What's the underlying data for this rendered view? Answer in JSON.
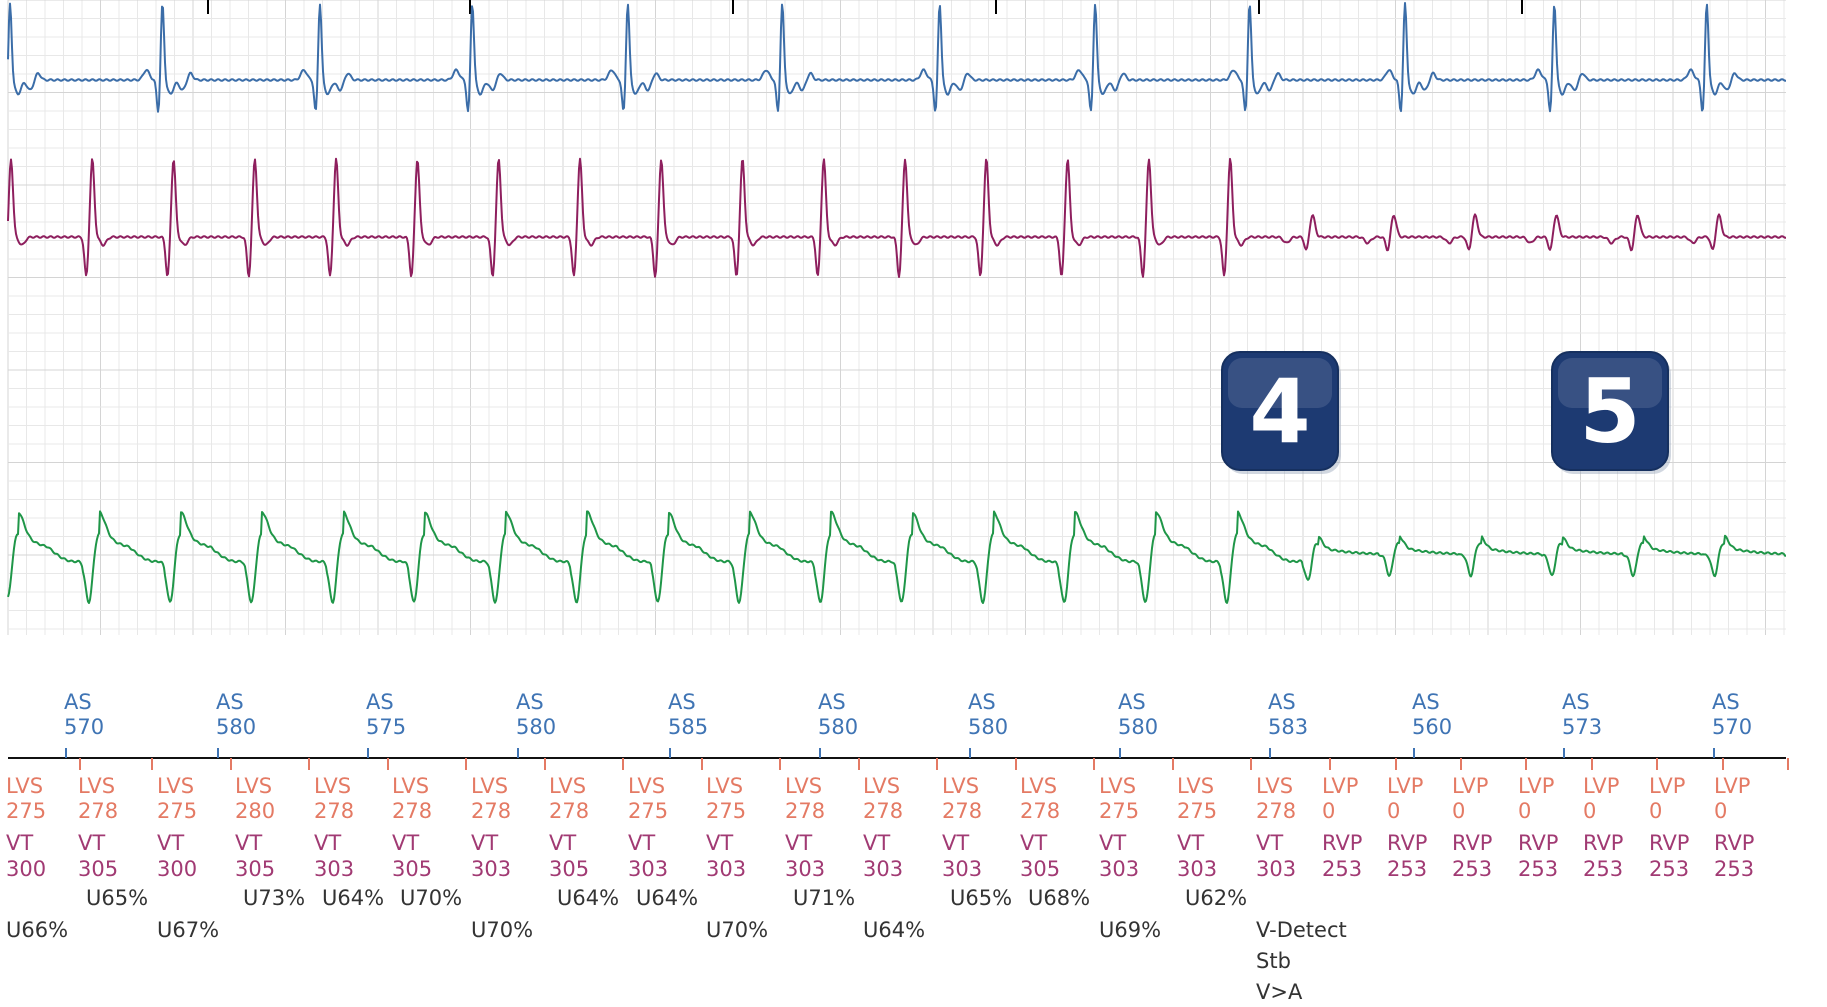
{
  "colors": {
    "channel_1": "#3b6da8",
    "channel_2": "#8e1f5e",
    "channel_3": "#1f9648",
    "atrial_marker": "#3f74b4",
    "lv_marker": "#e47a64",
    "rv_marker": "#a13a73",
    "annotation": "#333333",
    "badge": "#1d3a72"
  },
  "badges": [
    {
      "label": "4"
    },
    {
      "label": "5"
    }
  ],
  "chart_data": {
    "type": "line",
    "grid": true,
    "x_unit": "ms",
    "channels": [
      {
        "color": "#3b6da8",
        "beats_ms": [
          0,
          150,
          305,
          455,
          608,
          760,
          915,
          1068,
          1220,
          1373,
          1520,
          1670
        ]
      },
      {
        "color": "#8e1f5e",
        "beats_ms": [
          0,
          80,
          160,
          240,
          320,
          400,
          480,
          560,
          640,
          720,
          800,
          880,
          960,
          1040,
          1120,
          1200,
          1280,
          1360,
          1440,
          1520,
          1600,
          1680
        ]
      },
      {
        "color": "#1f9648",
        "beats_ms": [
          0,
          80,
          160,
          240,
          320,
          400,
          480,
          560,
          640,
          720,
          800,
          880,
          960,
          1040,
          1120,
          1200,
          1280,
          1360,
          1440,
          1520,
          1600,
          1680
        ]
      }
    ],
    "atrial_markers": [
      {
        "label": "AS",
        "value": "570"
      },
      {
        "label": "AS",
        "value": "580"
      },
      {
        "label": "AS",
        "value": "575"
      },
      {
        "label": "AS",
        "value": "580"
      },
      {
        "label": "AS",
        "value": "585"
      },
      {
        "label": "AS",
        "value": "580"
      },
      {
        "label": "AS",
        "value": "580"
      },
      {
        "label": "AS",
        "value": "580"
      },
      {
        "label": "AS",
        "value": "583"
      },
      {
        "label": "AS",
        "value": "560"
      },
      {
        "label": "AS",
        "value": "573"
      },
      {
        "label": "AS",
        "value": "570"
      }
    ],
    "ventricular_markers": [
      {
        "lv": "LVS",
        "lv_value": "275",
        "rv": "VT",
        "rv_value": "300",
        "note": "U66%"
      },
      {
        "lv": "LVS",
        "lv_value": "278",
        "rv": "VT",
        "rv_value": "305",
        "note": "U65%"
      },
      {
        "lv": "LVS",
        "lv_value": "275",
        "rv": "VT",
        "rv_value": "300",
        "note": "U67%"
      },
      {
        "lv": "LVS",
        "lv_value": "280",
        "rv": "VT",
        "rv_value": "305",
        "note": "U73%"
      },
      {
        "lv": "LVS",
        "lv_value": "278",
        "rv": "VT",
        "rv_value": "303",
        "note": "U64%"
      },
      {
        "lv": "LVS",
        "lv_value": "278",
        "rv": "VT",
        "rv_value": "305",
        "note": "U70%"
      },
      {
        "lv": "LVS",
        "lv_value": "278",
        "rv": "VT",
        "rv_value": "303",
        "note": "U70%"
      },
      {
        "lv": "LVS",
        "lv_value": "278",
        "rv": "VT",
        "rv_value": "305",
        "note": "U64%"
      },
      {
        "lv": "LVS",
        "lv_value": "275",
        "rv": "VT",
        "rv_value": "303",
        "note": "U64%"
      },
      {
        "lv": "LVS",
        "lv_value": "275",
        "rv": "VT",
        "rv_value": "303",
        "note": "U70%"
      },
      {
        "lv": "LVS",
        "lv_value": "278",
        "rv": "VT",
        "rv_value": "303",
        "note": "U71%"
      },
      {
        "lv": "LVS",
        "lv_value": "278",
        "rv": "VT",
        "rv_value": "303",
        "note": "U64%"
      },
      {
        "lv": "LVS",
        "lv_value": "278",
        "rv": "VT",
        "rv_value": "303",
        "note": "U65%"
      },
      {
        "lv": "LVS",
        "lv_value": "278",
        "rv": "VT",
        "rv_value": "305",
        "note": "U68%"
      },
      {
        "lv": "LVS",
        "lv_value": "275",
        "rv": "VT",
        "rv_value": "303",
        "note": "U69%"
      },
      {
        "lv": "LVS",
        "lv_value": "275",
        "rv": "VT",
        "rv_value": "303",
        "note": "U62%"
      },
      {
        "lv": "LVS",
        "lv_value": "278",
        "rv": "VT",
        "rv_value": "303",
        "note": "V-Detect\nStb\nV>A"
      },
      {
        "lv": "LVP",
        "lv_value": "0",
        "rv": "RVP",
        "rv_value": "253",
        "note": ""
      },
      {
        "lv": "LVP",
        "lv_value": "0",
        "rv": "RVP",
        "rv_value": "253",
        "note": ""
      },
      {
        "lv": "LVP",
        "lv_value": "0",
        "rv": "RVP",
        "rv_value": "253",
        "note": ""
      },
      {
        "lv": "LVP",
        "lv_value": "0",
        "rv": "RVP",
        "rv_value": "253",
        "note": ""
      },
      {
        "lv": "LVP",
        "lv_value": "0",
        "rv": "RVP",
        "rv_value": "253",
        "note": ""
      },
      {
        "lv": "LVP",
        "lv_value": "0",
        "rv": "RVP",
        "rv_value": "253",
        "note": ""
      },
      {
        "lv": "LVP",
        "lv_value": "0",
        "rv": "RVP",
        "rv_value": "253",
        "note": ""
      }
    ]
  }
}
